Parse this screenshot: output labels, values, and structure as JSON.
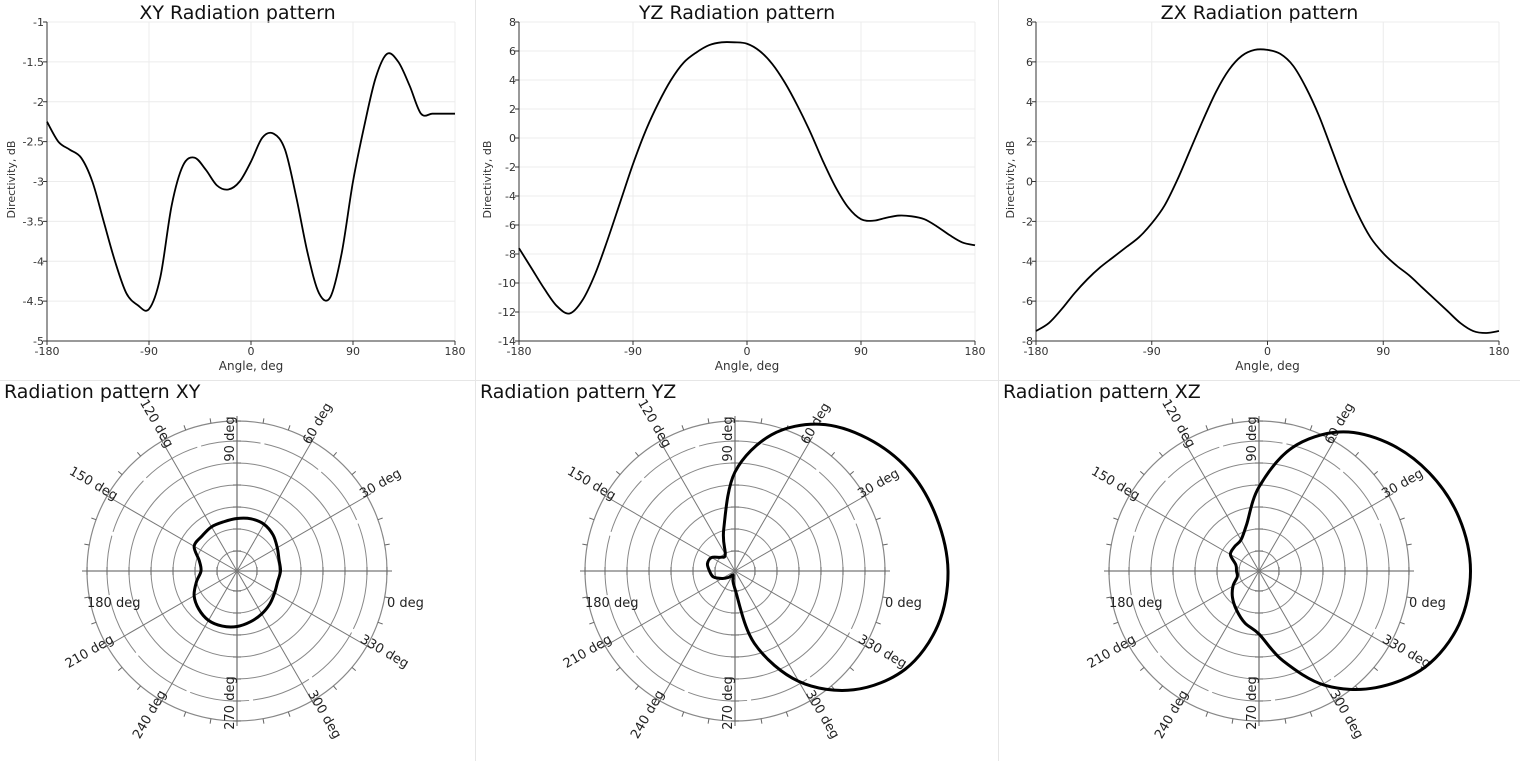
{
  "chart_data": [
    {
      "type": "line",
      "title": "XY Radiation pattern",
      "xlabel": "Angle, deg",
      "ylabel": "Directivity, dB",
      "xlim": [
        -180,
        180
      ],
      "ylim": [
        -5,
        -1
      ],
      "xticks": [
        -180,
        -90,
        0,
        90,
        180
      ],
      "xtick_labels": [
        "-180",
        "-90",
        "0",
        "90",
        "180"
      ],
      "yticks": [
        -5,
        -4.5,
        -4,
        -3.5,
        -3,
        -2.5,
        -2,
        -1.5,
        -1
      ],
      "ytick_labels": [
        "-5",
        "-4.5",
        "-4",
        "-3.5",
        "-3",
        "-2.5",
        "-2",
        "-1.5",
        "-1"
      ],
      "grid": true,
      "series": [
        {
          "color": "#000000",
          "x": [
            -180,
            -170,
            -160,
            -150,
            -140,
            -130,
            -120,
            -110,
            -100,
            -90,
            -80,
            -70,
            -60,
            -50,
            -40,
            -30,
            -20,
            -10,
            0,
            10,
            20,
            30,
            40,
            50,
            60,
            70,
            80,
            90,
            100,
            110,
            120,
            130,
            140,
            150,
            160,
            170,
            180
          ],
          "y": [
            -2.25,
            -2.5,
            -2.6,
            -2.7,
            -3.0,
            -3.5,
            -4.0,
            -4.4,
            -4.55,
            -4.6,
            -4.2,
            -3.3,
            -2.8,
            -2.7,
            -2.85,
            -3.05,
            -3.1,
            -3.0,
            -2.75,
            -2.45,
            -2.4,
            -2.6,
            -3.2,
            -3.9,
            -4.4,
            -4.45,
            -3.9,
            -3.0,
            -2.3,
            -1.7,
            -1.4,
            -1.5,
            -1.8,
            -2.15,
            -2.15,
            -2.15,
            -2.15
          ]
        }
      ]
    },
    {
      "type": "line",
      "title": "YZ Radiation pattern",
      "xlabel": "Angle, deg",
      "ylabel": "Directivity, dB",
      "xlim": [
        -180,
        180
      ],
      "ylim": [
        -14,
        8
      ],
      "xticks": [
        -180,
        -90,
        0,
        90,
        180
      ],
      "xtick_labels": [
        "-180",
        "-90",
        "0",
        "90",
        "180"
      ],
      "yticks": [
        -14,
        -12,
        -10,
        -8,
        -6,
        -4,
        -2,
        0,
        2,
        4,
        6,
        8
      ],
      "ytick_labels": [
        "-14",
        "-12",
        "-10",
        "-8",
        "-6",
        "-4",
        "-2",
        "0",
        "2",
        "4",
        "6",
        "8"
      ],
      "grid": true,
      "series": [
        {
          "color": "#000000",
          "x": [
            -180,
            -170,
            -160,
            -150,
            -140,
            -130,
            -120,
            -110,
            -100,
            -90,
            -80,
            -70,
            -60,
            -50,
            -40,
            -30,
            -20,
            -10,
            0,
            10,
            20,
            30,
            40,
            50,
            60,
            70,
            80,
            90,
            100,
            110,
            120,
            130,
            140,
            150,
            160,
            170,
            180
          ],
          "y": [
            -7.6,
            -9.0,
            -10.4,
            -11.6,
            -12.1,
            -11.2,
            -9.4,
            -7.0,
            -4.4,
            -1.8,
            0.5,
            2.4,
            4.0,
            5.2,
            5.9,
            6.4,
            6.6,
            6.6,
            6.5,
            6.0,
            5.1,
            3.8,
            2.2,
            0.4,
            -1.6,
            -3.4,
            -4.8,
            -5.6,
            -5.7,
            -5.5,
            -5.35,
            -5.4,
            -5.6,
            -6.1,
            -6.7,
            -7.2,
            -7.4
          ]
        }
      ]
    },
    {
      "type": "line",
      "title": "ZX Radiation pattern",
      "xlabel": "Angle, deg",
      "ylabel": "Directivity, dB",
      "xlim": [
        -180,
        180
      ],
      "ylim": [
        -8,
        8
      ],
      "xticks": [
        -180,
        -90,
        0,
        90,
        180
      ],
      "xtick_labels": [
        "-180",
        "-90",
        "0",
        "90",
        "180"
      ],
      "yticks": [
        -8,
        -6,
        -4,
        -2,
        0,
        2,
        4,
        6,
        8
      ],
      "ytick_labels": [
        "-8",
        "-6",
        "-4",
        "-2",
        "0",
        "2",
        "4",
        "6",
        "8"
      ],
      "grid": true,
      "series": [
        {
          "color": "#000000",
          "x": [
            -180,
            -170,
            -160,
            -150,
            -140,
            -130,
            -120,
            -110,
            -100,
            -90,
            -80,
            -70,
            -60,
            -50,
            -40,
            -30,
            -20,
            -10,
            0,
            10,
            20,
            30,
            40,
            50,
            60,
            70,
            80,
            90,
            100,
            110,
            120,
            130,
            140,
            150,
            160,
            170,
            180
          ],
          "y": [
            -7.5,
            -7.1,
            -6.4,
            -5.6,
            -4.9,
            -4.3,
            -3.8,
            -3.3,
            -2.8,
            -2.1,
            -1.2,
            0.1,
            1.6,
            3.1,
            4.5,
            5.6,
            6.3,
            6.6,
            6.6,
            6.4,
            5.8,
            4.7,
            3.3,
            1.6,
            -0.1,
            -1.6,
            -2.8,
            -3.6,
            -4.2,
            -4.7,
            -5.3,
            -5.9,
            -6.5,
            -7.1,
            -7.5,
            -7.6,
            -7.5
          ]
        }
      ]
    },
    {
      "type": "line",
      "subtype": "polar",
      "title": "Radiation pattern XY",
      "angle_labels": [
        "0 deg",
        "30 deg",
        "60 deg",
        "90 deg",
        "120 deg",
        "150 deg",
        "180 deg",
        "210 deg",
        "240 deg",
        "270 deg",
        "300 deg",
        "330 deg"
      ],
      "grid": true,
      "series": [
        {
          "color": "#000000",
          "theta": [
            0,
            15,
            30,
            45,
            60,
            75,
            90,
            105,
            120,
            135,
            150,
            165,
            180,
            195,
            210,
            225,
            240,
            255,
            270,
            285,
            300,
            315,
            330,
            345
          ],
          "r": [
            0.29,
            0.29,
            0.31,
            0.34,
            0.36,
            0.36,
            0.35,
            0.34,
            0.34,
            0.33,
            0.33,
            0.26,
            0.24,
            0.28,
            0.33,
            0.36,
            0.38,
            0.38,
            0.37,
            0.35,
            0.33,
            0.31,
            0.29,
            0.28
          ]
        }
      ]
    },
    {
      "type": "line",
      "subtype": "polar",
      "title": "Radiation pattern YZ",
      "angle_labels": [
        "0 deg",
        "30 deg",
        "60 deg",
        "90 deg",
        "120 deg",
        "150 deg",
        "180 deg",
        "210 deg",
        "240 deg",
        "270 deg",
        "300 deg",
        "330 deg"
      ],
      "grid": true,
      "series": [
        {
          "color": "#000000",
          "theta": [
            0,
            15,
            30,
            45,
            60,
            75,
            90,
            105,
            120,
            135,
            150,
            165,
            180,
            195,
            210,
            225,
            240,
            255,
            270,
            285,
            300,
            315,
            330,
            345
          ],
          "r": [
            1.42,
            1.39,
            1.34,
            1.25,
            1.13,
            0.94,
            0.66,
            0.29,
            0.13,
            0.13,
            0.18,
            0.19,
            0.17,
            0.15,
            0.1,
            0.06,
            0.03,
            0.05,
            0.12,
            0.5,
            0.85,
            1.12,
            1.31,
            1.4
          ]
        }
      ]
    },
    {
      "type": "line",
      "subtype": "polar",
      "title": "Radiation pattern XZ",
      "angle_labels": [
        "0 deg",
        "30 deg",
        "60 deg",
        "90 deg",
        "120 deg",
        "150 deg",
        "180 deg",
        "210 deg",
        "240 deg",
        "270 deg",
        "300 deg",
        "330 deg"
      ],
      "grid": true,
      "series": [
        {
          "color": "#000000",
          "theta": [
            0,
            15,
            30,
            45,
            60,
            75,
            90,
            105,
            120,
            135,
            150,
            165,
            180,
            195,
            210,
            225,
            240,
            255,
            270,
            285,
            300,
            315,
            330,
            345
          ],
          "r": [
            1.41,
            1.38,
            1.31,
            1.21,
            1.07,
            0.85,
            0.56,
            0.32,
            0.24,
            0.23,
            0.22,
            0.16,
            0.15,
            0.15,
            0.2,
            0.25,
            0.3,
            0.36,
            0.42,
            0.62,
            0.88,
            1.1,
            1.28,
            1.38
          ]
        }
      ]
    }
  ]
}
